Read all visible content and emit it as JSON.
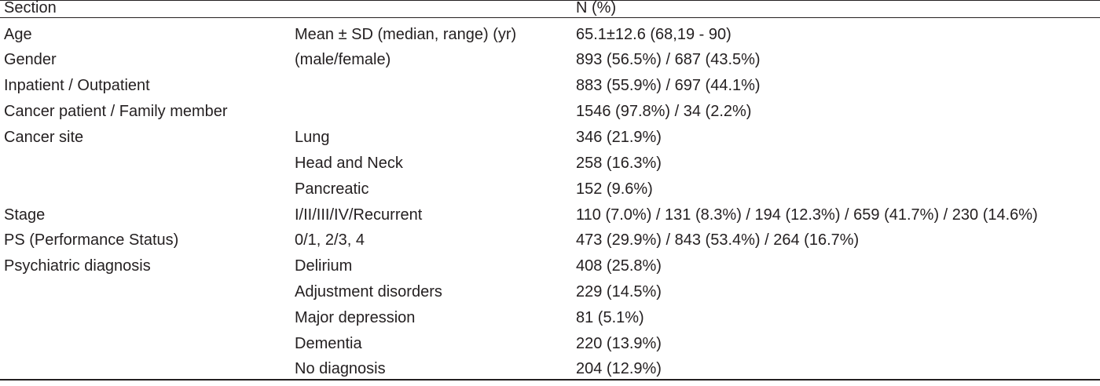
{
  "header": {
    "col_section": "Section",
    "col_detail": "",
    "col_value": "N (%)"
  },
  "rows": [
    {
      "section": "Age",
      "detail": "Mean ± SD (median, range) (yr)",
      "value": "65.1±12.6 (68,19 - 90)"
    },
    {
      "section": "Gender",
      "detail": "(male/female)",
      "value": "893 (56.5%) / 687 (43.5%)"
    },
    {
      "section": "Inpatient / Outpatient",
      "detail": "",
      "value": "883 (55.9%) / 697 (44.1%)"
    },
    {
      "section": "Cancer patient / Family member",
      "detail": "",
      "value": "1546 (97.8%) / 34 (2.2%)"
    },
    {
      "section": "Cancer site",
      "detail": "Lung",
      "value": "346 (21.9%)"
    },
    {
      "section": "",
      "detail": "Head and Neck",
      "value": "258 (16.3%)"
    },
    {
      "section": "",
      "detail": "Pancreatic",
      "value": "152 (9.6%)"
    },
    {
      "section": "Stage",
      "detail": "I/II/III/IV/Recurrent",
      "value": "110 (7.0%) / 131 (8.3%) / 194 (12.3%) / 659 (41.7%) / 230 (14.6%)"
    },
    {
      "section": "PS (Performance Status)",
      "detail": "0/1, 2/3, 4",
      "value": "473 (29.9%) / 843 (53.4%) / 264 (16.7%)"
    },
    {
      "section": "Psychiatric diagnosis",
      "detail": "Delirium",
      "value": "408 (25.8%)"
    },
    {
      "section": "",
      "detail": "Adjustment disorders",
      "value": "229 (14.5%)"
    },
    {
      "section": "",
      "detail": "Major depression",
      "value": "81 (5.1%)"
    },
    {
      "section": "",
      "detail": "Dementia",
      "value": "220 (13.9%)"
    },
    {
      "section": "",
      "detail": "No diagnosis",
      "value": "204 (12.9%)"
    }
  ]
}
